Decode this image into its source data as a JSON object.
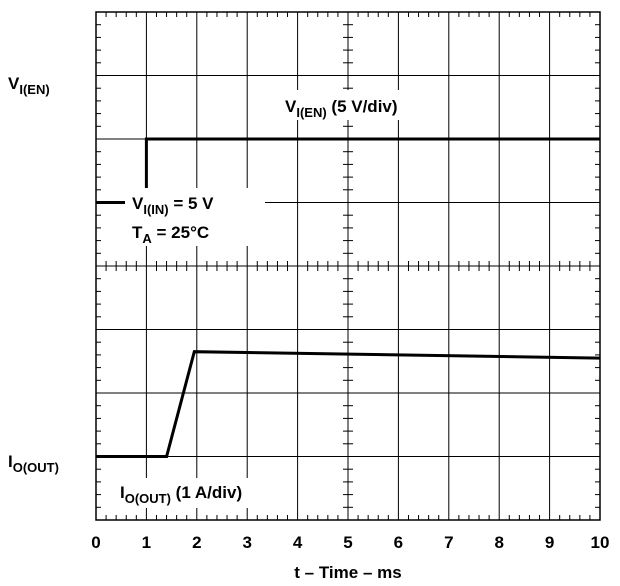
{
  "chart_data": {
    "type": "line",
    "title": "",
    "xlabel": "t – Time – ms",
    "x_ticks": [
      "0",
      "1",
      "2",
      "3",
      "4",
      "5",
      "6",
      "7",
      "8",
      "9",
      "10"
    ],
    "xlim": [
      0,
      10
    ],
    "x_divisions": 10,
    "y_divisions": 8,
    "grid": true,
    "series": [
      {
        "name": "V_I(EN) (5 V/div)",
        "scale": "5 V/div",
        "reference_label": {
          "main": "V",
          "sub": "I(EN)"
        },
        "baseline_div": 6,
        "points": [
          [
            0,
            -1
          ],
          [
            1,
            -1
          ],
          [
            1,
            0
          ],
          [
            10,
            0
          ]
        ]
      },
      {
        "name": "I_O(OUT) (1 A/div)",
        "scale": "1 A/div",
        "reference_label": {
          "main": "I",
          "sub": "O(OUT)"
        },
        "baseline_div": 1,
        "points": [
          [
            0,
            0
          ],
          [
            1.4,
            0
          ],
          [
            1.95,
            1.65
          ],
          [
            10,
            1.55
          ]
        ]
      }
    ],
    "annotations": {
      "ven_label": {
        "main": "V",
        "sub": "I(EN)",
        "rest": " (5 V/div)"
      },
      "iout_label": {
        "main": "I",
        "sub": "O(OUT)",
        "rest": " (1 A/div)"
      },
      "vin_condition": {
        "main": "V",
        "sub": "I(IN)",
        "rest": " = 5 V"
      },
      "ta_condition": {
        "main": "T",
        "sub": "A",
        "rest": " = 25°C"
      }
    }
  }
}
